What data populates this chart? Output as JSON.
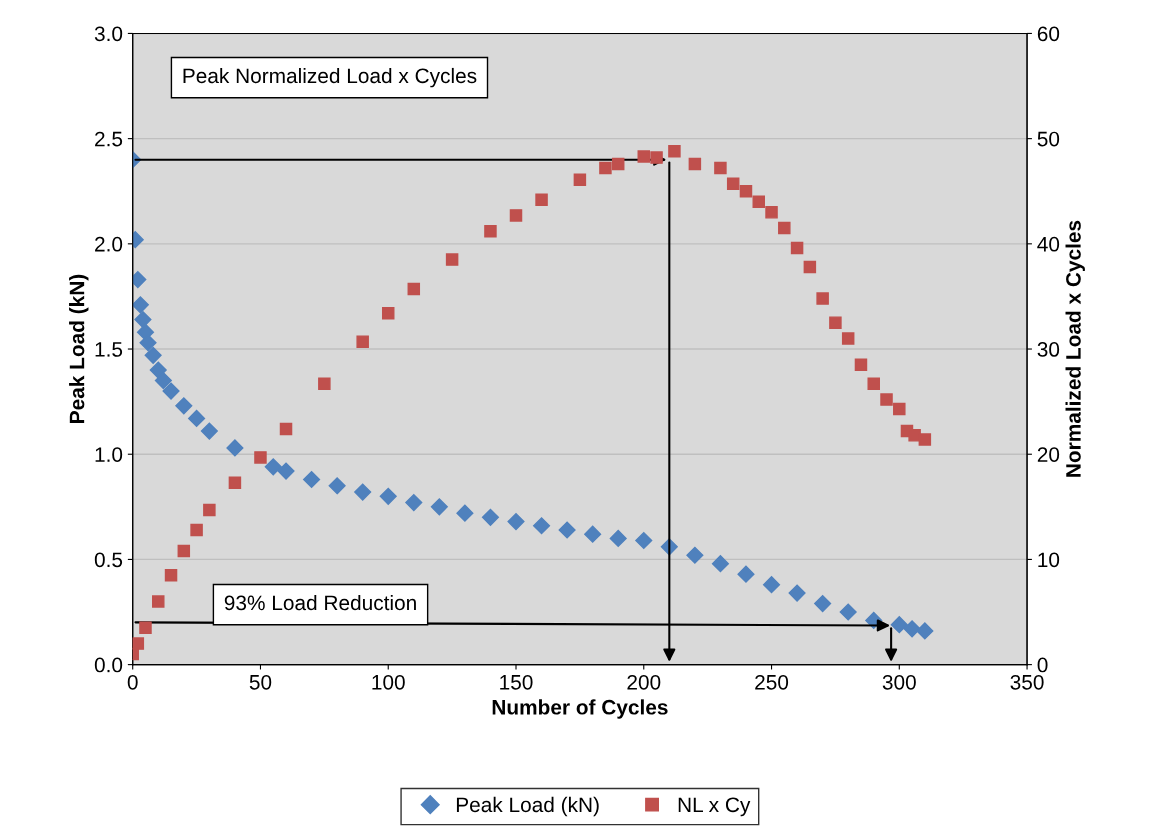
{
  "chart_data": {
    "type": "scatter",
    "xlabel": "Number of Cycles",
    "ylabel": "Peak Load (kN)",
    "y2label": "Normalized Load x Cycles",
    "xlim": [
      0,
      350
    ],
    "xticks": [
      0,
      50,
      100,
      150,
      200,
      250,
      300,
      350
    ],
    "ylim": [
      0,
      3.0
    ],
    "yticks": [
      {
        "value": 0,
        "label": "0.0"
      },
      {
        "value": 0.5,
        "label": "0.5"
      },
      {
        "value": 1.0,
        "label": "1.0"
      },
      {
        "value": 1.5,
        "label": "1.5"
      },
      {
        "value": 2.0,
        "label": "2.0"
      },
      {
        "value": 2.5,
        "label": "2.5"
      },
      {
        "value": 3.0,
        "label": "3.0"
      }
    ],
    "y2lim": [
      0,
      60
    ],
    "y2ticks": [
      0,
      10,
      20,
      30,
      40,
      50,
      60
    ],
    "grid": "y",
    "legend": "bottom",
    "series": [
      {
        "name": "Peak Load (kN)",
        "color": "#4f81bd",
        "marker": "diamond",
        "x": [
          0,
          1,
          2,
          3,
          4,
          5,
          6,
          8,
          10,
          12,
          15,
          20,
          25,
          30,
          40,
          55,
          60,
          70,
          80,
          90,
          100,
          110,
          120,
          130,
          140,
          150,
          160,
          170,
          180,
          190,
          200,
          210,
          220,
          230,
          240,
          250,
          260,
          270,
          280,
          290,
          300,
          305,
          310
        ],
        "values": [
          2.4,
          2.02,
          1.83,
          1.71,
          1.64,
          1.58,
          1.53,
          1.47,
          1.4,
          1.35,
          1.3,
          1.23,
          1.17,
          1.11,
          1.03,
          0.94,
          0.92,
          0.88,
          0.85,
          0.82,
          0.8,
          0.77,
          0.75,
          0.72,
          0.7,
          0.68,
          0.66,
          0.64,
          0.62,
          0.6,
          0.59,
          0.56,
          0.52,
          0.48,
          0.43,
          0.38,
          0.34,
          0.29,
          0.25,
          0.21,
          0.19,
          0.17,
          0.16
        ]
      },
      {
        "name": "NL x Cy",
        "color": "#c0504d",
        "marker": "square",
        "axis": "y2",
        "x": [
          0,
          2,
          5,
          10,
          15,
          20,
          25,
          30,
          40,
          50,
          60,
          75,
          90,
          100,
          110,
          125,
          140,
          150,
          160,
          175,
          185,
          190,
          200,
          205,
          212,
          220,
          230,
          235,
          240,
          245,
          250,
          255,
          260,
          265,
          270,
          275,
          280,
          285,
          290,
          295,
          300,
          303,
          306,
          310
        ],
        "values": [
          1,
          2,
          3.5,
          6,
          8.5,
          10.8,
          12.8,
          14.7,
          17.3,
          19.7,
          22.4,
          26.7,
          30.7,
          33.4,
          35.7,
          38.5,
          41.2,
          42.7,
          44.2,
          46.1,
          47.2,
          47.6,
          48.3,
          48.2,
          48.8,
          47.6,
          47.2,
          45.7,
          45,
          44,
          43,
          41.5,
          39.6,
          37.8,
          34.8,
          32.5,
          31,
          28.5,
          26.7,
          25.2,
          24.3,
          22.2,
          21.8,
          21.4
        ]
      }
    ],
    "annotations": [
      "Peak Normalized Load x Cycles",
      "93% Load Reduction"
    ]
  }
}
